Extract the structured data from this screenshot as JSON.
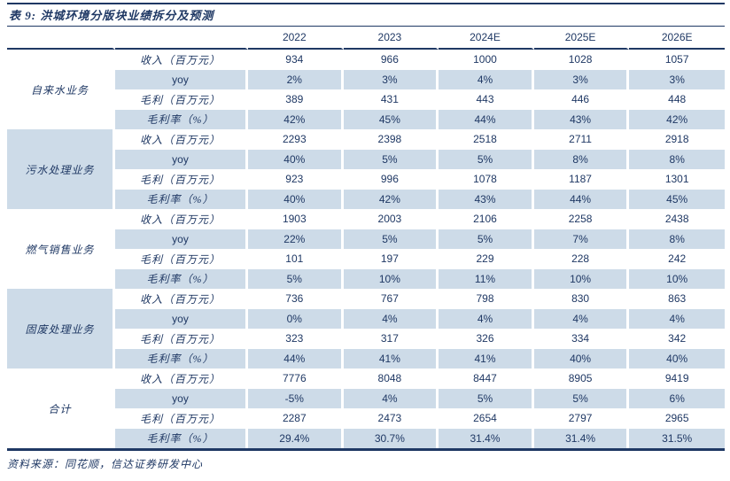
{
  "title": "表 9:  洪城环境分版块业绩拆分及预测",
  "source_note": "资料来源：同花顺，信达证券研发中心",
  "colors": {
    "navy": "#1F3864",
    "row_shade": "#CDDBE8"
  },
  "table": {
    "year_columns": [
      "2022",
      "2023",
      "2024E",
      "2025E",
      "2026E"
    ],
    "groups": [
      {
        "name": "自来水业务",
        "rows": [
          {
            "label": "收入（百万元）",
            "values": [
              "934",
              "966",
              "1000",
              "1028",
              "1057"
            ]
          },
          {
            "label": "yoy",
            "values": [
              "2%",
              "3%",
              "4%",
              "3%",
              "3%"
            ]
          },
          {
            "label": "毛利（百万元）",
            "values": [
              "389",
              "431",
              "443",
              "446",
              "448"
            ]
          },
          {
            "label": "毛利率（%）",
            "values": [
              "42%",
              "45%",
              "44%",
              "43%",
              "42%"
            ]
          }
        ]
      },
      {
        "name": "污水处理业务",
        "rows": [
          {
            "label": "收入（百万元）",
            "values": [
              "2293",
              "2398",
              "2518",
              "2711",
              "2918"
            ]
          },
          {
            "label": "yoy",
            "values": [
              "40%",
              "5%",
              "5%",
              "8%",
              "8%"
            ]
          },
          {
            "label": "毛利（百万元）",
            "values": [
              "923",
              "996",
              "1078",
              "1187",
              "1301"
            ]
          },
          {
            "label": "毛利率（%）",
            "values": [
              "40%",
              "42%",
              "43%",
              "44%",
              "45%"
            ]
          }
        ]
      },
      {
        "name": "燃气销售业务",
        "rows": [
          {
            "label": "收入（百万元）",
            "values": [
              "1903",
              "2003",
              "2106",
              "2258",
              "2438"
            ]
          },
          {
            "label": "yoy",
            "values": [
              "22%",
              "5%",
              "5%",
              "7%",
              "8%"
            ]
          },
          {
            "label": "毛利（百万元）",
            "values": [
              "101",
              "197",
              "229",
              "228",
              "242"
            ]
          },
          {
            "label": "毛利率（%）",
            "values": [
              "5%",
              "10%",
              "11%",
              "10%",
              "10%"
            ]
          }
        ]
      },
      {
        "name": "固废处理业务",
        "rows": [
          {
            "label": "收入（百万元）",
            "values": [
              "736",
              "767",
              "798",
              "830",
              "863"
            ]
          },
          {
            "label": "yoy",
            "values": [
              "0%",
              "4%",
              "4%",
              "4%",
              "4%"
            ]
          },
          {
            "label": "毛利（百万元）",
            "values": [
              "323",
              "317",
              "326",
              "334",
              "342"
            ]
          },
          {
            "label": "毛利率（%）",
            "values": [
              "44%",
              "41%",
              "41%",
              "40%",
              "40%"
            ]
          }
        ]
      },
      {
        "name": "合计",
        "rows": [
          {
            "label": "收入（百万元）",
            "values": [
              "7776",
              "8048",
              "8447",
              "8905",
              "9419"
            ]
          },
          {
            "label": "yoy",
            "values": [
              "-5%",
              "4%",
              "5%",
              "5%",
              "6%"
            ]
          },
          {
            "label": "毛利（百万元）",
            "values": [
              "2287",
              "2473",
              "2654",
              "2797",
              "2965"
            ]
          },
          {
            "label": "毛利率（%）",
            "values": [
              "29.4%",
              "30.7%",
              "31.4%",
              "31.4%",
              "31.5%"
            ]
          }
        ]
      }
    ]
  }
}
